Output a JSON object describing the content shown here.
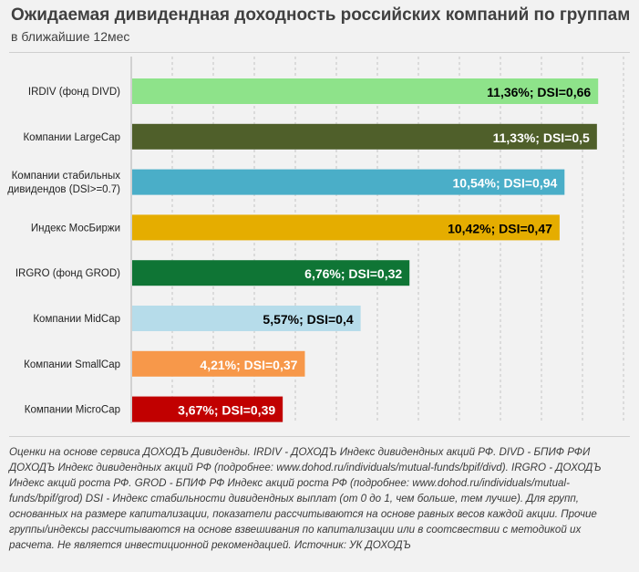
{
  "title": "Ожидаемая дивидендная доходность российских компаний по группам",
  "subtitle": "в ближайшие 12мес",
  "footnote": "Оценки на основе сервиса ДОХОДЪ Дивиденды. IRDIV - ДОХОДЪ Индекс дивидендных акций РФ. DIVD - БПИФ РФИ ДОХОДЪ Индекс дивидендных акций РФ (подробнее: www.dohod.ru/individuals/mutual-funds/bpif/divd). IRGRO - ДОХОДЪ Индекс акций роста РФ. GROD - БПИФ РФ Индекс акций роста РФ (подробнее: www.dohod.ru/individuals/mutual-funds/bpif/grod) DSI - Индекс стабильности дивидендных выплат (от 0 до 1, чем больше, тем лучше). Для групп, основанных на размере капитализации, показатели рассчитываются на основе равных весов каждой акции. Прочие группы/индексы рассчитываются на основе взвешивания по капитализации или в соотсвествии с методикой их расчета. Не является инвестиционной рекомендацией. Источник: УК ДОХОДЪ",
  "chart_data": {
    "type": "bar",
    "orientation": "horizontal",
    "title": "Ожидаемая дивидендная доходность российских компаний по группам",
    "subtitle": "в ближайшие 12мес",
    "xlabel": "",
    "ylabel": "",
    "xlim": [
      0,
      12
    ],
    "grid": true,
    "categories": [
      [
        "IRDIV (фонд DIVD)"
      ],
      [
        "Компании LargeCap"
      ],
      [
        "Компании стабильных",
        "дивидендов (DSI>=0.7)"
      ],
      [
        "Индекс МосБиржи"
      ],
      [
        "IRGRO (фонд GROD)"
      ],
      [
        "Компании MidCap"
      ],
      [
        "Компании SmallCap"
      ],
      [
        "Компании MicroCap"
      ]
    ],
    "values": [
      11.36,
      11.33,
      10.54,
      10.42,
      6.76,
      5.57,
      4.21,
      3.67
    ],
    "dsi": [
      0.66,
      0.5,
      0.94,
      0.47,
      0.32,
      0.4,
      0.37,
      0.39
    ],
    "labels": [
      "11,36%;  DSI=0,66",
      "11,33%;  DSI=0,5",
      "10,54%;  DSI=0,94",
      "10,42%;  DSI=0,47",
      "6,76%;  DSI=0,32",
      "5,57%;  DSI=0,4",
      "4,21%;  DSI=0,37",
      "3,67%;  DSI=0,39"
    ],
    "colors": [
      "#8ee38a",
      "#4f5f2a",
      "#4aaec8",
      "#e5ad00",
      "#0f7535",
      "#b6dcea",
      "#f7984a",
      "#c10000"
    ]
  }
}
